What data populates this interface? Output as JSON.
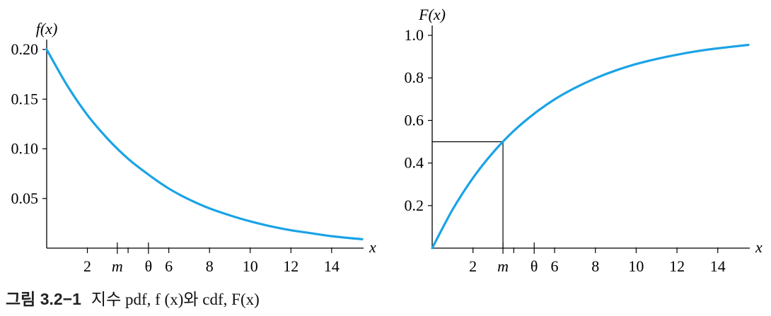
{
  "colors": {
    "curve": "#1aa3e6",
    "axis": "#000000"
  },
  "caption": {
    "label": "그림 3.2−1",
    "text": "지수 pdf, f (x)와 cdf, F(x)"
  },
  "chart_data": [
    {
      "type": "line",
      "function": "exponential pdf",
      "ylabel": "f(x)",
      "xlabel": "x",
      "xlim": [
        0,
        15.5
      ],
      "ylim": [
        0,
        0.2
      ],
      "xticks": [
        2,
        4,
        6,
        8,
        10,
        12,
        14
      ],
      "xtick_labels": [
        "2",
        "",
        "6",
        "8",
        "10",
        "12",
        "14"
      ],
      "yticks": [
        0.05,
        0.1,
        0.15,
        0.2
      ],
      "ytick_labels": [
        "0.05",
        "0.10",
        "0.15",
        "0.20"
      ],
      "markers": [
        {
          "label": "m",
          "x": 3.47
        },
        {
          "label": "θ",
          "x": 5
        }
      ],
      "series": [
        {
          "x": [
            0,
            1,
            2,
            3,
            4,
            5,
            6,
            7,
            8,
            9,
            10,
            11,
            12,
            13,
            14,
            15.5
          ],
          "y": [
            0.2,
            0.164,
            0.134,
            0.11,
            0.09,
            0.074,
            0.06,
            0.049,
            0.04,
            0.033,
            0.027,
            0.022,
            0.018,
            0.015,
            0.012,
            0.009
          ]
        }
      ]
    },
    {
      "type": "line",
      "function": "exponential cdf",
      "ylabel": "F(x)",
      "xlabel": "x",
      "xlim": [
        0,
        15.5
      ],
      "ylim": [
        0,
        1.0
      ],
      "xticks": [
        2,
        4,
        6,
        8,
        10,
        12,
        14
      ],
      "xtick_labels": [
        "2",
        "",
        "6",
        "8",
        "10",
        "12",
        "14"
      ],
      "yticks": [
        0.2,
        0.4,
        0.6,
        0.8,
        1.0
      ],
      "ytick_labels": [
        "0.2",
        "0.4",
        "0.6",
        "0.8",
        "1.0"
      ],
      "markers": [
        {
          "label": "m",
          "x": 3.47
        },
        {
          "label": "θ",
          "x": 5
        }
      ],
      "median_guide": {
        "x": 3.47,
        "y": 0.5
      },
      "series": [
        {
          "x": [
            0,
            1,
            2,
            3,
            4,
            5,
            6,
            7,
            8,
            9,
            10,
            11,
            12,
            13,
            14,
            15.5
          ],
          "y": [
            0,
            0.181,
            0.33,
            0.451,
            0.551,
            0.632,
            0.699,
            0.753,
            0.798,
            0.835,
            0.865,
            0.889,
            0.909,
            0.926,
            0.939,
            0.955
          ]
        }
      ]
    }
  ]
}
